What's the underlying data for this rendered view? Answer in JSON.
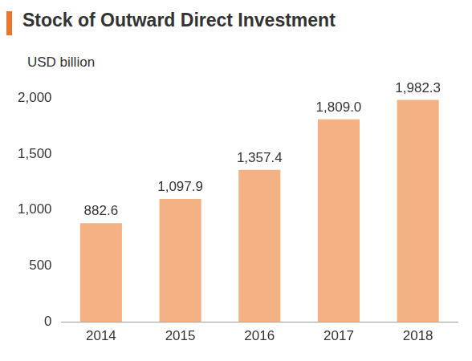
{
  "chart_data": {
    "type": "bar",
    "title": "Stock of Outward Direct Investment",
    "y_label": "USD billion",
    "categories": [
      "2014",
      "2015",
      "2016",
      "2017",
      "2018"
    ],
    "values": [
      882.6,
      1097.9,
      1357.4,
      1809.0,
      1982.3
    ],
    "value_labels": [
      "882.6",
      "1,097.9",
      "1,357.4",
      "1,809.0",
      "1,982.3"
    ],
    "color": "#f4b183",
    "ylim": [
      0,
      2000
    ],
    "yticks": [
      0,
      500,
      {
        "value": 1000,
        "label": "1,000"
      },
      {
        "value": 1500,
        "label": "1,500"
      },
      {
        "value": 2000,
        "label": "2,000"
      }
    ],
    "grid": false,
    "data_labels": true
  }
}
